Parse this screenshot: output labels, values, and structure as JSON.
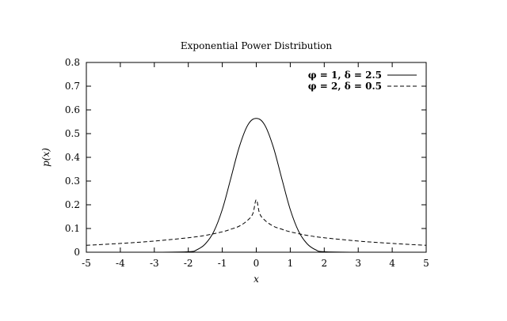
{
  "chart_data": {
    "type": "line",
    "title": "Exponential Power Distribution",
    "xlabel": "x",
    "ylabel": "p(x)",
    "xlim": [
      -5,
      5
    ],
    "ylim": [
      0,
      0.8
    ],
    "xticks": [
      "-5",
      "-4",
      "-3",
      "-2",
      "-1",
      "0",
      "1",
      "2",
      "3",
      "4",
      "5"
    ],
    "yticks": [
      "0",
      "0.1",
      "0.2",
      "0.3",
      "0.4",
      "0.5",
      "0.6",
      "0.7",
      "0.8"
    ],
    "grid": false,
    "legend_position": "top-right",
    "series": [
      {
        "name": "φ = 1, δ = 2.5",
        "style": "solid",
        "color": "#000000",
        "x": [
          -5,
          -3,
          -2,
          -1.75,
          -1.5,
          -1.25,
          -1,
          -0.75,
          -0.5,
          -0.25,
          0,
          0.25,
          0.5,
          0.75,
          1,
          1.25,
          1.5,
          1.75,
          2,
          3,
          5
        ],
        "y": [
          0,
          0,
          0.002,
          0.01,
          0.035,
          0.087,
          0.18,
          0.311,
          0.444,
          0.536,
          0.564,
          0.536,
          0.444,
          0.311,
          0.18,
          0.087,
          0.035,
          0.01,
          0.002,
          0,
          0
        ]
      },
      {
        "name": "φ = 2, δ = 0.5",
        "style": "dashed",
        "color": "#000000",
        "x": [
          -5,
          -4,
          -3,
          -2,
          -1.5,
          -1,
          -0.75,
          -0.5,
          -0.25,
          -0.1,
          0,
          0.1,
          0.25,
          0.5,
          0.75,
          1,
          1.5,
          2,
          3,
          4,
          5
        ],
        "y": [
          0.029,
          0.037,
          0.047,
          0.061,
          0.071,
          0.086,
          0.097,
          0.11,
          0.135,
          0.163,
          0.221,
          0.163,
          0.135,
          0.11,
          0.097,
          0.086,
          0.071,
          0.061,
          0.047,
          0.037,
          0.029
        ]
      }
    ]
  }
}
